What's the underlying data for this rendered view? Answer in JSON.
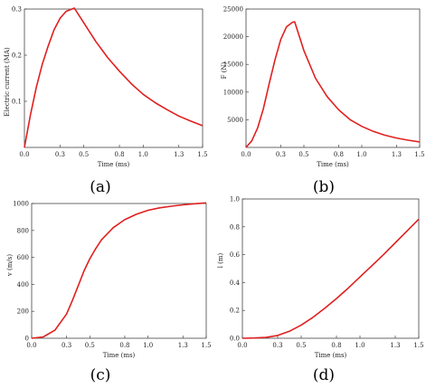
{
  "chart_data": [
    {
      "type": "line",
      "panel_label": "(a)",
      "xlabel": "Time (ms)",
      "ylabel": "Electric current (MA)",
      "xlim": [
        0.0,
        1.5
      ],
      "ylim": [
        0.0,
        0.3
      ],
      "xticks": [
        "0.0",
        "0.3",
        "0.5",
        "0.8",
        "1.0",
        "1.3",
        "1.5"
      ],
      "yticks": [
        "0.1",
        "0.2",
        "0.3"
      ],
      "ytick_values": [
        0.1,
        0.2,
        0.3
      ],
      "line_color": "#e02020",
      "x": [
        0.0,
        0.05,
        0.1,
        0.15,
        0.2,
        0.25,
        0.3,
        0.35,
        0.4,
        0.42,
        0.5,
        0.6,
        0.7,
        0.8,
        0.9,
        1.0,
        1.1,
        1.2,
        1.3,
        1.4,
        1.5
      ],
      "y": [
        0.0,
        0.07,
        0.13,
        0.18,
        0.22,
        0.255,
        0.28,
        0.295,
        0.3,
        0.302,
        0.27,
        0.23,
        0.195,
        0.165,
        0.138,
        0.115,
        0.097,
        0.082,
        0.068,
        0.057,
        0.047
      ]
    },
    {
      "type": "line",
      "panel_label": "(b)",
      "xlabel": "Time (ms)",
      "ylabel": "F (N)",
      "xlim": [
        0.0,
        1.5
      ],
      "ylim": [
        0,
        25000
      ],
      "xticks": [
        "0.0",
        "0.3",
        "0.5",
        "0.8",
        "1.0",
        "1.3",
        "1.5"
      ],
      "yticks": [
        "5000",
        "10000",
        "15000",
        "20000",
        "25000"
      ],
      "ytick_values": [
        5000,
        10000,
        15000,
        20000,
        25000
      ],
      "line_color": "#e02020",
      "x": [
        0.0,
        0.05,
        0.1,
        0.15,
        0.2,
        0.25,
        0.3,
        0.35,
        0.4,
        0.42,
        0.5,
        0.6,
        0.7,
        0.8,
        0.9,
        1.0,
        1.1,
        1.2,
        1.3,
        1.4,
        1.5
      ],
      "y": [
        0,
        1200,
        3500,
        7000,
        11500,
        15800,
        19500,
        21800,
        22600,
        22700,
        17500,
        12500,
        9200,
        6800,
        5000,
        3800,
        2900,
        2200,
        1700,
        1300,
        1000
      ]
    },
    {
      "type": "line",
      "panel_label": "(c)",
      "xlabel": "Time (ms)",
      "ylabel": "v (m/s)",
      "xlim": [
        0.0,
        1.5
      ],
      "ylim": [
        0,
        1000
      ],
      "xticks": [
        "0.0",
        "0.3",
        "0.5",
        "0.8",
        "1.0",
        "1.3",
        "1.5"
      ],
      "yticks": [
        "0",
        "200",
        "400",
        "600",
        "800",
        "1000"
      ],
      "ytick_values": [
        0,
        200,
        400,
        600,
        800,
        1000
      ],
      "line_color": "#e02020",
      "x": [
        0.0,
        0.1,
        0.2,
        0.3,
        0.35,
        0.4,
        0.45,
        0.5,
        0.55,
        0.6,
        0.7,
        0.8,
        0.9,
        1.0,
        1.1,
        1.2,
        1.3,
        1.4,
        1.5
      ],
      "y": [
        0,
        10,
        60,
        180,
        280,
        390,
        500,
        590,
        665,
        730,
        820,
        880,
        920,
        950,
        968,
        980,
        990,
        998,
        1005
      ]
    },
    {
      "type": "line",
      "panel_label": "(d)",
      "xlabel": "Time (ms)",
      "ylabel": "l (m)",
      "xlim": [
        0.0,
        1.5
      ],
      "ylim": [
        0.0,
        1.0
      ],
      "xticks": [
        "0.0",
        "0.3",
        "0.5",
        "0.8",
        "1.0",
        "1.3",
        "1.5"
      ],
      "yticks": [
        "0.0",
        "0.2",
        "0.4",
        "0.6",
        "0.8",
        "1.0"
      ],
      "ytick_values": [
        0.0,
        0.2,
        0.4,
        0.6,
        0.8,
        1.0
      ],
      "line_color": "#e02020",
      "x": [
        0.0,
        0.1,
        0.2,
        0.3,
        0.4,
        0.5,
        0.6,
        0.7,
        0.8,
        0.9,
        1.0,
        1.1,
        1.2,
        1.3,
        1.4,
        1.5
      ],
      "y": [
        0.0,
        0.002,
        0.006,
        0.02,
        0.05,
        0.095,
        0.15,
        0.215,
        0.285,
        0.36,
        0.44,
        0.52,
        0.6,
        0.685,
        0.77,
        0.855
      ]
    }
  ]
}
